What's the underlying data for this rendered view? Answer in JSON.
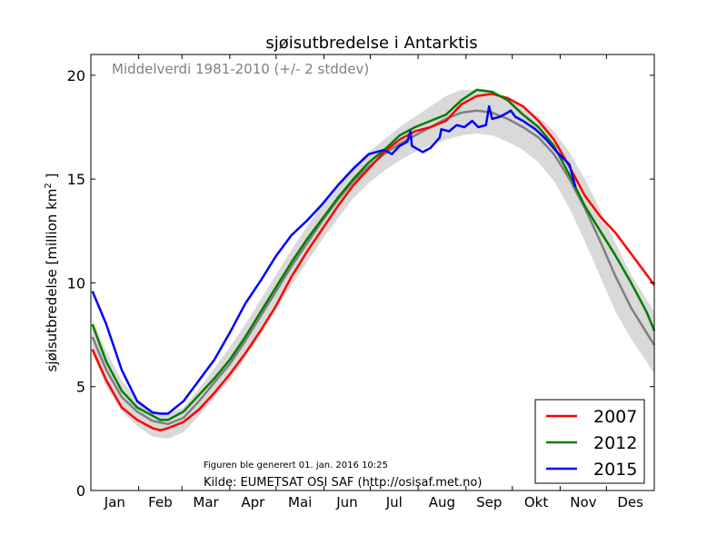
{
  "chart_data": {
    "type": "line",
    "title": "sjøisutbredelse i Antarktis",
    "ylabel": "sjøisutbredelse [million km",
    "ylabel_sup": "2",
    "ylabel_end": " ]",
    "ylim": [
      0,
      21
    ],
    "yticks": [
      "0",
      "5",
      "10",
      "15",
      "20"
    ],
    "month_labels": [
      "Jan",
      "Feb",
      "Mar",
      "Apr",
      "Mai",
      "Jun",
      "Jul",
      "Aug",
      "Sep",
      "Okt",
      "Nov",
      "Des"
    ],
    "mean_label": "Middelverdi 1981-2010 (+/- 2 stddev)",
    "generated_note": "Figuren ble generert 01. jan. 2016 10:25",
    "source_note": "Kilde: EUMETSAT OSI SAF (http://osisaf.met.no)",
    "legend_position": "bottom-right",
    "grid": false,
    "x_unit": "day_of_year",
    "mean": {
      "color": "#808080",
      "points": [
        [
          1,
          7.4
        ],
        [
          10,
          5.8
        ],
        [
          20,
          4.5
        ],
        [
          30,
          3.8
        ],
        [
          40,
          3.35
        ],
        [
          50,
          3.2
        ],
        [
          60,
          3.5
        ],
        [
          70,
          4.3
        ],
        [
          80,
          5.2
        ],
        [
          90,
          6.1
        ],
        [
          100,
          7.2
        ],
        [
          110,
          8.4
        ],
        [
          120,
          9.6
        ],
        [
          130,
          10.8
        ],
        [
          140,
          11.9
        ],
        [
          150,
          13.0
        ],
        [
          160,
          14.0
        ],
        [
          170,
          14.9
        ],
        [
          180,
          15.6
        ],
        [
          190,
          16.2
        ],
        [
          200,
          16.7
        ],
        [
          210,
          17.1
        ],
        [
          220,
          17.5
        ],
        [
          230,
          17.9
        ],
        [
          240,
          18.2
        ],
        [
          250,
          18.3
        ],
        [
          260,
          18.2
        ],
        [
          270,
          17.9
        ],
        [
          280,
          17.5
        ],
        [
          290,
          17.0
        ],
        [
          300,
          16.2
        ],
        [
          310,
          15.0
        ],
        [
          320,
          13.6
        ],
        [
          330,
          12.0
        ],
        [
          340,
          10.3
        ],
        [
          350,
          8.8
        ],
        [
          360,
          7.6
        ],
        [
          365,
          7.0
        ]
      ]
    },
    "band": {
      "color": "#d9d9d9",
      "upper": [
        [
          1,
          8.2
        ],
        [
          10,
          6.7
        ],
        [
          20,
          5.3
        ],
        [
          30,
          4.4
        ],
        [
          40,
          3.85
        ],
        [
          50,
          3.7
        ],
        [
          60,
          4.0
        ],
        [
          70,
          4.9
        ],
        [
          80,
          5.9
        ],
        [
          90,
          6.9
        ],
        [
          100,
          8.0
        ],
        [
          110,
          9.2
        ],
        [
          120,
          10.4
        ],
        [
          130,
          11.6
        ],
        [
          140,
          12.7
        ],
        [
          150,
          13.8
        ],
        [
          160,
          14.8
        ],
        [
          170,
          15.6
        ],
        [
          180,
          16.3
        ],
        [
          190,
          16.9
        ],
        [
          200,
          17.5
        ],
        [
          210,
          18.0
        ],
        [
          220,
          18.5
        ],
        [
          230,
          19.0
        ],
        [
          240,
          19.3
        ],
        [
          250,
          19.3
        ],
        [
          260,
          19.2
        ],
        [
          270,
          18.9
        ],
        [
          280,
          18.5
        ],
        [
          290,
          18.0
        ],
        [
          300,
          17.3
        ],
        [
          310,
          16.3
        ],
        [
          320,
          15.0
        ],
        [
          330,
          13.5
        ],
        [
          340,
          11.9
        ],
        [
          350,
          10.4
        ],
        [
          360,
          9.2
        ],
        [
          365,
          8.6
        ]
      ],
      "lower": [
        [
          1,
          6.6
        ],
        [
          10,
          5.0
        ],
        [
          20,
          3.8
        ],
        [
          30,
          3.1
        ],
        [
          40,
          2.6
        ],
        [
          50,
          2.5
        ],
        [
          60,
          2.8
        ],
        [
          70,
          3.6
        ],
        [
          80,
          4.5
        ],
        [
          90,
          5.3
        ],
        [
          100,
          6.4
        ],
        [
          110,
          7.5
        ],
        [
          120,
          8.7
        ],
        [
          130,
          9.9
        ],
        [
          140,
          11.0
        ],
        [
          150,
          12.1
        ],
        [
          160,
          13.1
        ],
        [
          170,
          14.1
        ],
        [
          180,
          14.8
        ],
        [
          190,
          15.4
        ],
        [
          200,
          15.9
        ],
        [
          210,
          16.3
        ],
        [
          220,
          16.6
        ],
        [
          230,
          16.9
        ],
        [
          240,
          17.1
        ],
        [
          250,
          17.2
        ],
        [
          260,
          17.1
        ],
        [
          270,
          16.8
        ],
        [
          280,
          16.4
        ],
        [
          290,
          15.8
        ],
        [
          300,
          14.9
        ],
        [
          310,
          13.6
        ],
        [
          320,
          12.0
        ],
        [
          330,
          10.3
        ],
        [
          340,
          8.6
        ],
        [
          350,
          7.3
        ],
        [
          360,
          6.2
        ],
        [
          365,
          5.6
        ]
      ]
    },
    "series": [
      {
        "name": "2007",
        "color": "#ff0000",
        "points": [
          [
            1,
            6.8
          ],
          [
            10,
            5.3
          ],
          [
            20,
            4.0
          ],
          [
            30,
            3.4
          ],
          [
            40,
            3.0
          ],
          [
            45,
            2.9
          ],
          [
            50,
            3.0
          ],
          [
            60,
            3.3
          ],
          [
            70,
            3.9
          ],
          [
            80,
            4.7
          ],
          [
            90,
            5.6
          ],
          [
            100,
            6.6
          ],
          [
            110,
            7.7
          ],
          [
            120,
            8.9
          ],
          [
            130,
            10.3
          ],
          [
            140,
            11.5
          ],
          [
            150,
            12.6
          ],
          [
            160,
            13.7
          ],
          [
            170,
            14.7
          ],
          [
            180,
            15.5
          ],
          [
            190,
            16.3
          ],
          [
            200,
            16.9
          ],
          [
            210,
            17.3
          ],
          [
            220,
            17.5
          ],
          [
            230,
            17.8
          ],
          [
            240,
            18.6
          ],
          [
            250,
            19.0
          ],
          [
            260,
            19.1
          ],
          [
            270,
            18.9
          ],
          [
            280,
            18.5
          ],
          [
            290,
            17.8
          ],
          [
            300,
            16.9
          ],
          [
            310,
            15.6
          ],
          [
            320,
            14.2
          ],
          [
            330,
            13.2
          ],
          [
            340,
            12.4
          ],
          [
            350,
            11.4
          ],
          [
            360,
            10.4
          ],
          [
            365,
            9.9
          ]
        ]
      },
      {
        "name": "2012",
        "color": "#007f00",
        "points": [
          [
            1,
            8.0
          ],
          [
            10,
            6.2
          ],
          [
            20,
            4.8
          ],
          [
            30,
            4.0
          ],
          [
            40,
            3.6
          ],
          [
            45,
            3.4
          ],
          [
            50,
            3.4
          ],
          [
            60,
            3.8
          ],
          [
            70,
            4.6
          ],
          [
            80,
            5.4
          ],
          [
            90,
            6.3
          ],
          [
            100,
            7.4
          ],
          [
            110,
            8.6
          ],
          [
            120,
            9.8
          ],
          [
            130,
            11.0
          ],
          [
            140,
            12.1
          ],
          [
            150,
            13.1
          ],
          [
            160,
            14.1
          ],
          [
            170,
            15.0
          ],
          [
            180,
            15.8
          ],
          [
            190,
            16.4
          ],
          [
            200,
            17.1
          ],
          [
            210,
            17.5
          ],
          [
            220,
            17.8
          ],
          [
            230,
            18.1
          ],
          [
            240,
            18.8
          ],
          [
            250,
            19.3
          ],
          [
            260,
            19.2
          ],
          [
            270,
            18.8
          ],
          [
            280,
            18.1
          ],
          [
            290,
            17.5
          ],
          [
            300,
            16.6
          ],
          [
            310,
            15.2
          ],
          [
            320,
            13.7
          ],
          [
            330,
            12.5
          ],
          [
            340,
            11.3
          ],
          [
            350,
            10.0
          ],
          [
            360,
            8.6
          ],
          [
            365,
            7.7
          ]
        ]
      },
      {
        "name": "2015",
        "color": "#0000ff",
        "points": [
          [
            1,
            9.6
          ],
          [
            10,
            8.0
          ],
          [
            20,
            5.8
          ],
          [
            30,
            4.3
          ],
          [
            40,
            3.75
          ],
          [
            45,
            3.7
          ],
          [
            50,
            3.7
          ],
          [
            60,
            4.3
          ],
          [
            70,
            5.3
          ],
          [
            80,
            6.3
          ],
          [
            90,
            7.6
          ],
          [
            100,
            9.0
          ],
          [
            110,
            10.1
          ],
          [
            120,
            11.3
          ],
          [
            130,
            12.3
          ],
          [
            140,
            13.0
          ],
          [
            150,
            13.8
          ],
          [
            160,
            14.7
          ],
          [
            170,
            15.5
          ],
          [
            180,
            16.2
          ],
          [
            190,
            16.4
          ],
          [
            195,
            16.2
          ],
          [
            200,
            16.6
          ],
          [
            205,
            16.8
          ],
          [
            207,
            17.3
          ],
          [
            208,
            16.6
          ],
          [
            215,
            16.3
          ],
          [
            220,
            16.5
          ],
          [
            226,
            17.0
          ],
          [
            227,
            17.4
          ],
          [
            232,
            17.3
          ],
          [
            237,
            17.6
          ],
          [
            242,
            17.5
          ],
          [
            247,
            17.8
          ],
          [
            251,
            17.5
          ],
          [
            256,
            17.6
          ],
          [
            258,
            18.5
          ],
          [
            260,
            17.9
          ],
          [
            265,
            18.0
          ],
          [
            270,
            18.2
          ],
          [
            272,
            18.3
          ],
          [
            275,
            18.0
          ],
          [
            280,
            17.8
          ],
          [
            288,
            17.4
          ],
          [
            295,
            16.9
          ],
          [
            302,
            16.3
          ],
          [
            310,
            15.7
          ],
          [
            314,
            14.6
          ]
        ]
      }
    ]
  }
}
